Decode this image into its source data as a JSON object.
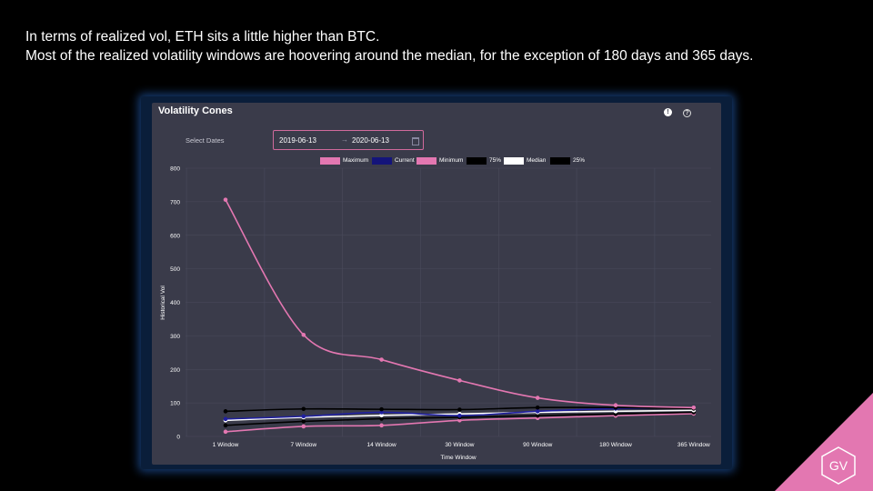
{
  "headline": {
    "line1": "In terms of realized vol, ETH sits a little higher  than BTC.",
    "line2": "Most of the realized volatility windows are hoovering around the median, for the exception of 180 days and 365 days."
  },
  "card": {
    "title": "Volatility Cones",
    "select_label": "Select Dates",
    "date_from": "2019-06-13",
    "date_arrow": "→",
    "date_to": "2020-06-13",
    "info_icon": "!",
    "help_icon": "?"
  },
  "logo": {
    "text": "GV"
  },
  "colors": {
    "maximum": "#e377b1",
    "current": "#2020a0",
    "minimum": "#e377b1",
    "p75": "#000000",
    "median": "#ffffff",
    "p25": "#000000",
    "brand": "#e377b1"
  },
  "chart_data": {
    "type": "line",
    "title": "Volatility Cones",
    "xlabel": "Time Window",
    "ylabel": "Historical Vol",
    "ylim": [
      0,
      800
    ],
    "yticks": [
      "0",
      "100",
      "200",
      "300",
      "400",
      "500",
      "600",
      "700",
      "800"
    ],
    "categories": [
      "1 Window",
      "7 Window",
      "14 Window",
      "30 Window",
      "90 Window",
      "180 Window",
      "365 Window"
    ],
    "legend_position": "top",
    "grid": true,
    "series": [
      {
        "name": "Maximum",
        "color": "#e377b1",
        "values": [
          706,
          303,
          229,
          167,
          115,
          93,
          86
        ]
      },
      {
        "name": "Current",
        "color": "#2020a0",
        "values": [
          52,
          60,
          72,
          62,
          75,
          83,
          86
        ]
      },
      {
        "name": "Minimum",
        "color": "#e377b1",
        "values": [
          14,
          30,
          33,
          48,
          55,
          62,
          68
        ]
      },
      {
        "name": "75%",
        "color": "#000000",
        "values": [
          75,
          82,
          81,
          80,
          86,
          86,
          83
        ]
      },
      {
        "name": "Median",
        "color": "#ffffff",
        "values": [
          48,
          57,
          63,
          67,
          72,
          75,
          78
        ]
      },
      {
        "name": "25%",
        "color": "#000000",
        "values": [
          33,
          45,
          53,
          57,
          62,
          67,
          72
        ]
      }
    ]
  }
}
